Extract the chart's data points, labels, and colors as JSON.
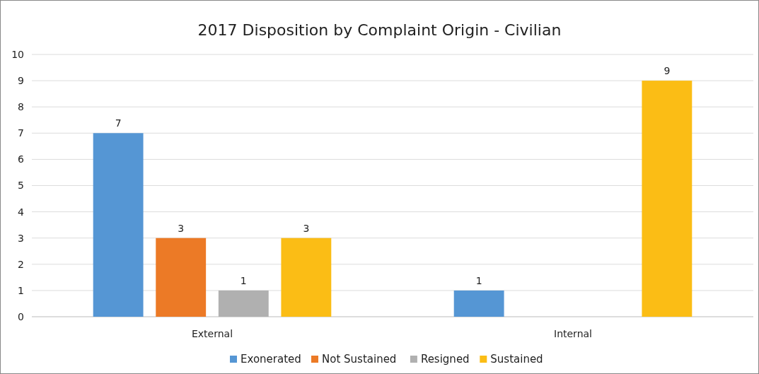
{
  "chart_data": {
    "type": "bar",
    "title": "2017 Disposition by Complaint Origin - Civilian",
    "categories": [
      "External",
      "Internal"
    ],
    "series": [
      {
        "name": "Exonerated",
        "color": "#5596d4",
        "values": [
          7,
          1
        ]
      },
      {
        "name": "Not Sustained",
        "color": "#ec7a26",
        "values": [
          3,
          null
        ]
      },
      {
        "name": "Resigned",
        "color": "#b0b0b0",
        "values": [
          1,
          null
        ]
      },
      {
        "name": "Sustained",
        "color": "#fbbd15",
        "values": [
          3,
          9
        ]
      }
    ],
    "ylim": [
      0,
      10
    ],
    "yticks": [
      0,
      1,
      2,
      3,
      4,
      5,
      6,
      7,
      8,
      9,
      10
    ],
    "grid": "y",
    "legend": "bottom",
    "data_labels": true
  }
}
